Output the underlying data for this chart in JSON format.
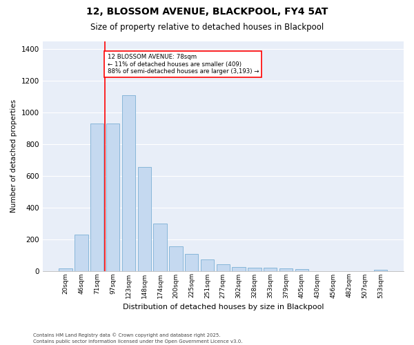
{
  "title": "12, BLOSSOM AVENUE, BLACKPOOL, FY4 5AT",
  "subtitle": "Size of property relative to detached houses in Blackpool",
  "xlabel": "Distribution of detached houses by size in Blackpool",
  "ylabel": "Number of detached properties",
  "footnote1": "Contains HM Land Registry data © Crown copyright and database right 2025.",
  "footnote2": "Contains public sector information licensed under the Open Government Licence v3.0.",
  "annotation_line1": "12 BLOSSOM AVENUE: 78sqm",
  "annotation_line2": "← 11% of detached houses are smaller (409)",
  "annotation_line3": "88% of semi-detached houses are larger (3,193) →",
  "bar_color": "#c5d9f0",
  "bar_edge_color": "#7bafd4",
  "vline_color": "red",
  "vline_x_index": 2.5,
  "background_color": "#e8eef8",
  "ylim": [
    0,
    1450
  ],
  "yticks": [
    0,
    200,
    400,
    600,
    800,
    1000,
    1200,
    1400
  ],
  "categories": [
    "20sqm",
    "46sqm",
    "71sqm",
    "97sqm",
    "123sqm",
    "148sqm",
    "174sqm",
    "200sqm",
    "225sqm",
    "251sqm",
    "277sqm",
    "302sqm",
    "328sqm",
    "353sqm",
    "379sqm",
    "405sqm",
    "430sqm",
    "456sqm",
    "482sqm",
    "507sqm",
    "533sqm"
  ],
  "values": [
    15,
    230,
    930,
    930,
    1110,
    655,
    300,
    155,
    105,
    70,
    40,
    25,
    20,
    18,
    15,
    12,
    0,
    0,
    0,
    0,
    7
  ]
}
